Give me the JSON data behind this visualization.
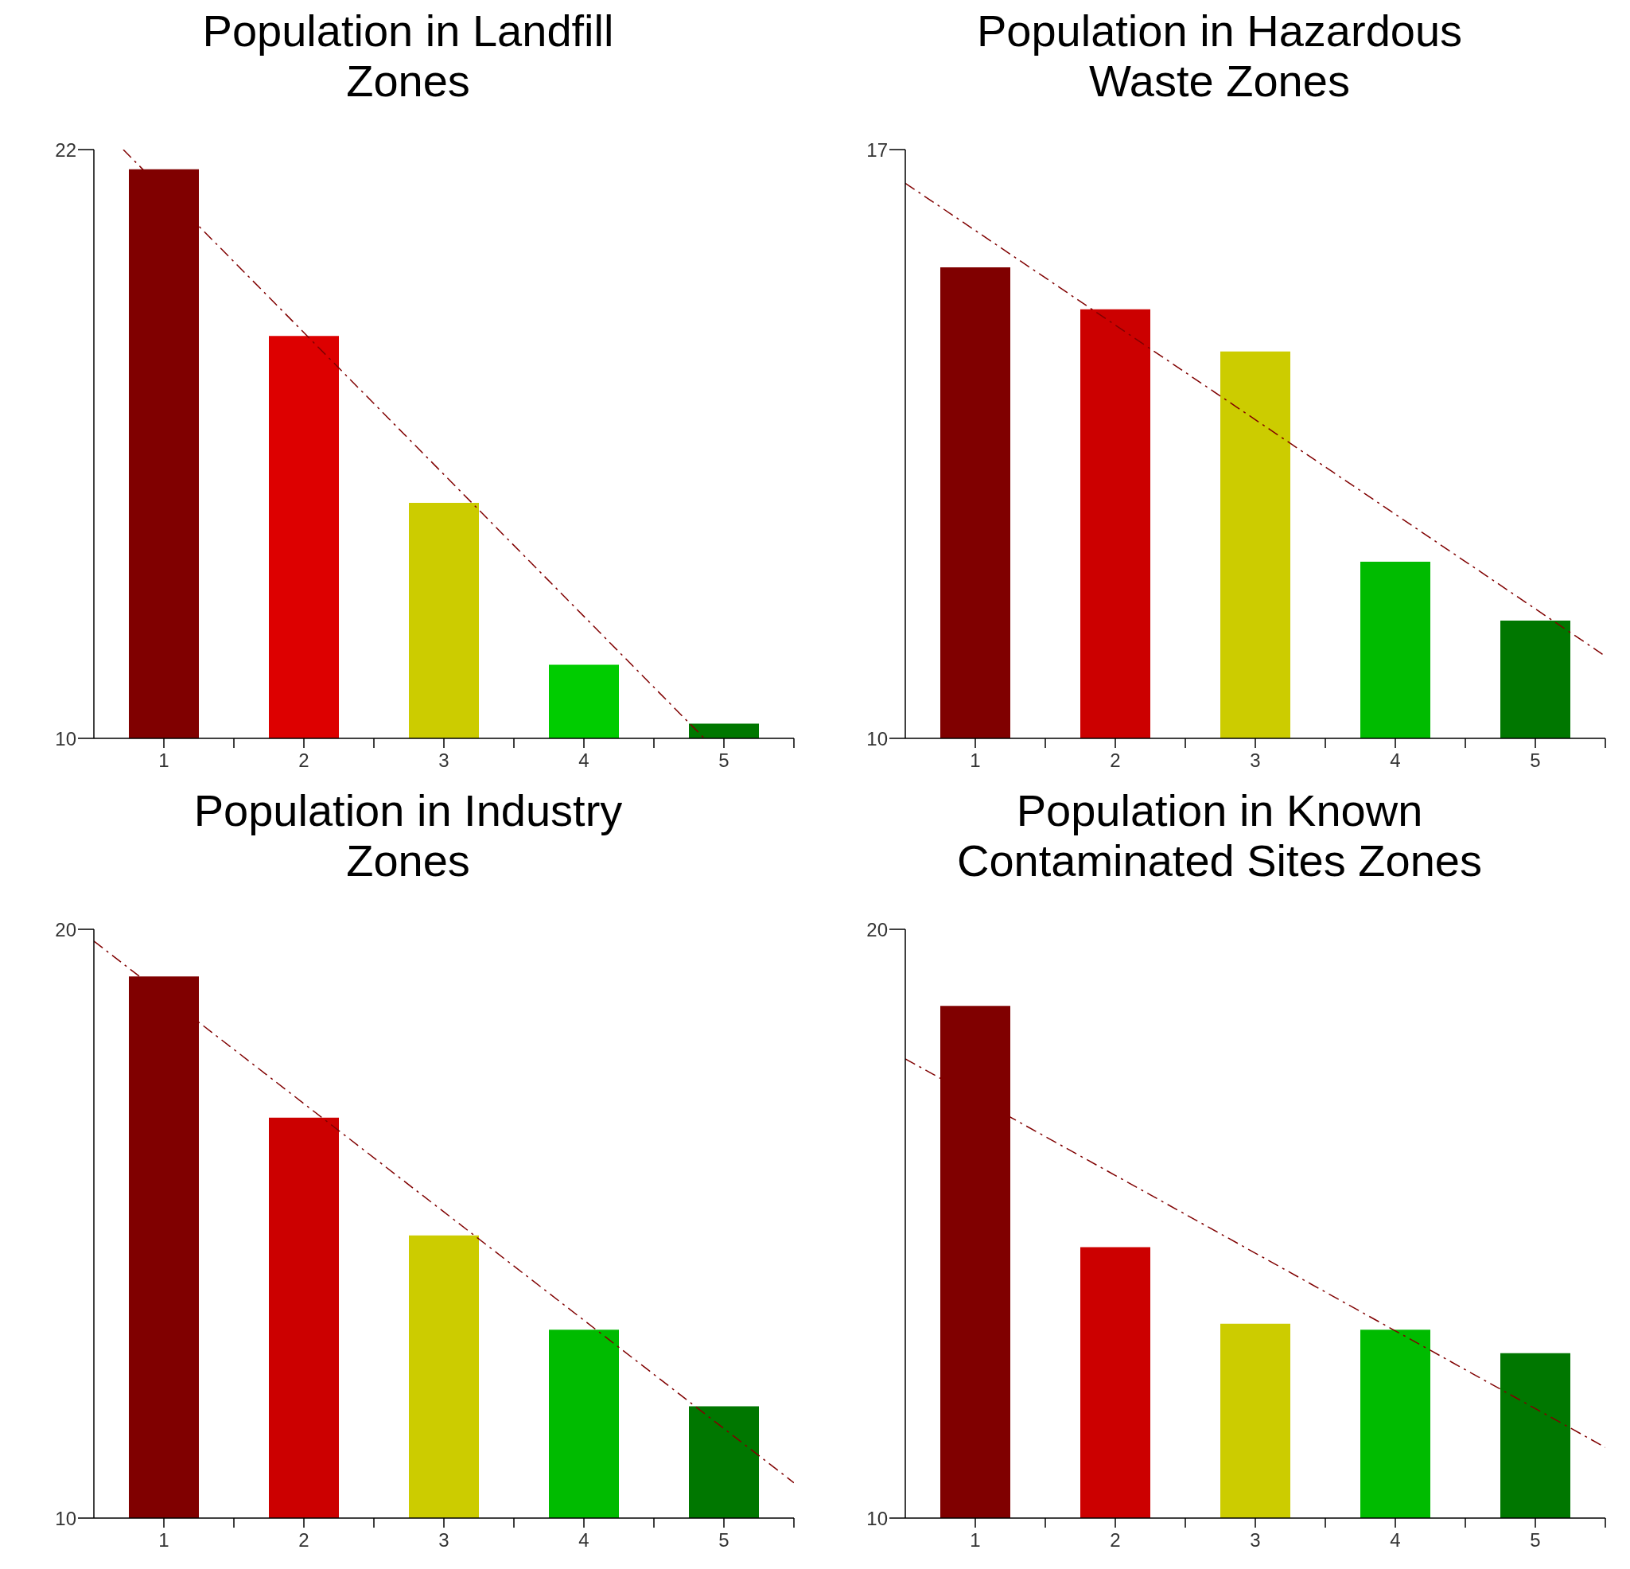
{
  "chart_data": [
    {
      "type": "bar",
      "title": "Population in Landfill\nZones",
      "x": [
        1,
        2,
        3,
        4,
        5
      ],
      "values": [
        21.6,
        18.2,
        14.8,
        11.5,
        10.3
      ],
      "colors": [
        "#800000",
        "#dd0000",
        "#cccc00",
        "#00cc00",
        "#007700"
      ],
      "xlim": [
        0.5,
        5.5
      ],
      "xticks": [
        {
          "value": 1,
          "label": "1"
        },
        {
          "value": 1.5,
          "label": null
        },
        {
          "value": 2,
          "label": "2"
        },
        {
          "value": 2.5,
          "label": null
        },
        {
          "value": 3,
          "label": "3"
        },
        {
          "value": 3.5,
          "label": null
        },
        {
          "value": 4,
          "label": "4"
        },
        {
          "value": 4.5,
          "label": null
        },
        {
          "value": 5,
          "label": "5"
        },
        {
          "value": 5.5,
          "label": null
        }
      ],
      "ylim": [
        10,
        22
      ],
      "yticks": [
        10,
        22
      ],
      "grid": false,
      "legend": false,
      "series": [
        {
          "type": "line",
          "x": [
            0.71,
            4.86
          ],
          "values": [
            22,
            10
          ],
          "color": "#800000",
          "line_style": "dashed"
        }
      ]
    },
    {
      "type": "bar",
      "title": "Population in Hazardous\nWaste Zones",
      "x": [
        1,
        2,
        3,
        4,
        5
      ],
      "values": [
        15.6,
        15.1,
        14.6,
        12.1,
        11.4
      ],
      "colors": [
        "#800000",
        "#cc0000",
        "#cccc00",
        "#00bb00",
        "#007700"
      ],
      "xlim": [
        0.5,
        5.5
      ],
      "xticks": [
        {
          "value": 1,
          "label": "1"
        },
        {
          "value": 1.5,
          "label": null
        },
        {
          "value": 2,
          "label": "2"
        },
        {
          "value": 2.5,
          "label": null
        },
        {
          "value": 3,
          "label": "3"
        },
        {
          "value": 3.5,
          "label": null
        },
        {
          "value": 4,
          "label": "4"
        },
        {
          "value": 4.5,
          "label": null
        },
        {
          "value": 5,
          "label": "5"
        },
        {
          "value": 5.5,
          "label": null
        }
      ],
      "ylim": [
        10,
        17
      ],
      "yticks": [
        10,
        17
      ],
      "grid": false,
      "legend": false,
      "series": [
        {
          "type": "line",
          "x": [
            0.5,
            5.48
          ],
          "values": [
            16.6,
            11.0
          ],
          "color": "#800000",
          "line_style": "dashed"
        }
      ]
    },
    {
      "type": "bar",
      "title": "Population in Industry\nZones",
      "x": [
        1,
        2,
        3,
        4,
        5
      ],
      "values": [
        19.2,
        16.8,
        14.8,
        13.2,
        11.9
      ],
      "colors": [
        "#800000",
        "#cc0000",
        "#cccc00",
        "#00bb00",
        "#007700"
      ],
      "xlim": [
        0.5,
        5.5
      ],
      "xticks": [
        {
          "value": 1,
          "label": "1"
        },
        {
          "value": 1.5,
          "label": null
        },
        {
          "value": 2,
          "label": "2"
        },
        {
          "value": 2.5,
          "label": null
        },
        {
          "value": 3,
          "label": "3"
        },
        {
          "value": 3.5,
          "label": null
        },
        {
          "value": 4,
          "label": "4"
        },
        {
          "value": 4.5,
          "label": null
        },
        {
          "value": 5,
          "label": "5"
        },
        {
          "value": 5.5,
          "label": null
        }
      ],
      "ylim": [
        10,
        20
      ],
      "yticks": [
        10,
        20
      ],
      "grid": false,
      "legend": false,
      "series": [
        {
          "type": "line",
          "x": [
            0.5,
            5.5
          ],
          "values": [
            19.8,
            10.6
          ],
          "color": "#800000",
          "line_style": "dashed"
        }
      ]
    },
    {
      "type": "bar",
      "title": "Population in Known\nContaminated Sites Zones",
      "x": [
        1,
        2,
        3,
        4,
        5
      ],
      "values": [
        18.7,
        14.6,
        13.3,
        13.2,
        12.8
      ],
      "colors": [
        "#800000",
        "#cc0000",
        "#cccc00",
        "#00bb00",
        "#007700"
      ],
      "xlim": [
        0.5,
        5.5
      ],
      "xticks": [
        {
          "value": 1,
          "label": "1"
        },
        {
          "value": 1.5,
          "label": null
        },
        {
          "value": 2,
          "label": "2"
        },
        {
          "value": 2.5,
          "label": null
        },
        {
          "value": 3,
          "label": "3"
        },
        {
          "value": 3.5,
          "label": null
        },
        {
          "value": 4,
          "label": "4"
        },
        {
          "value": 4.5,
          "label": null
        },
        {
          "value": 5,
          "label": "5"
        },
        {
          "value": 5.5,
          "label": null
        }
      ],
      "ylim": [
        10,
        20
      ],
      "yticks": [
        10,
        20
      ],
      "grid": false,
      "legend": false,
      "series": [
        {
          "type": "line",
          "x": [
            0.5,
            5.5
          ],
          "values": [
            17.8,
            11.2
          ],
          "color": "#800000",
          "line_style": "dashed"
        }
      ]
    }
  ]
}
